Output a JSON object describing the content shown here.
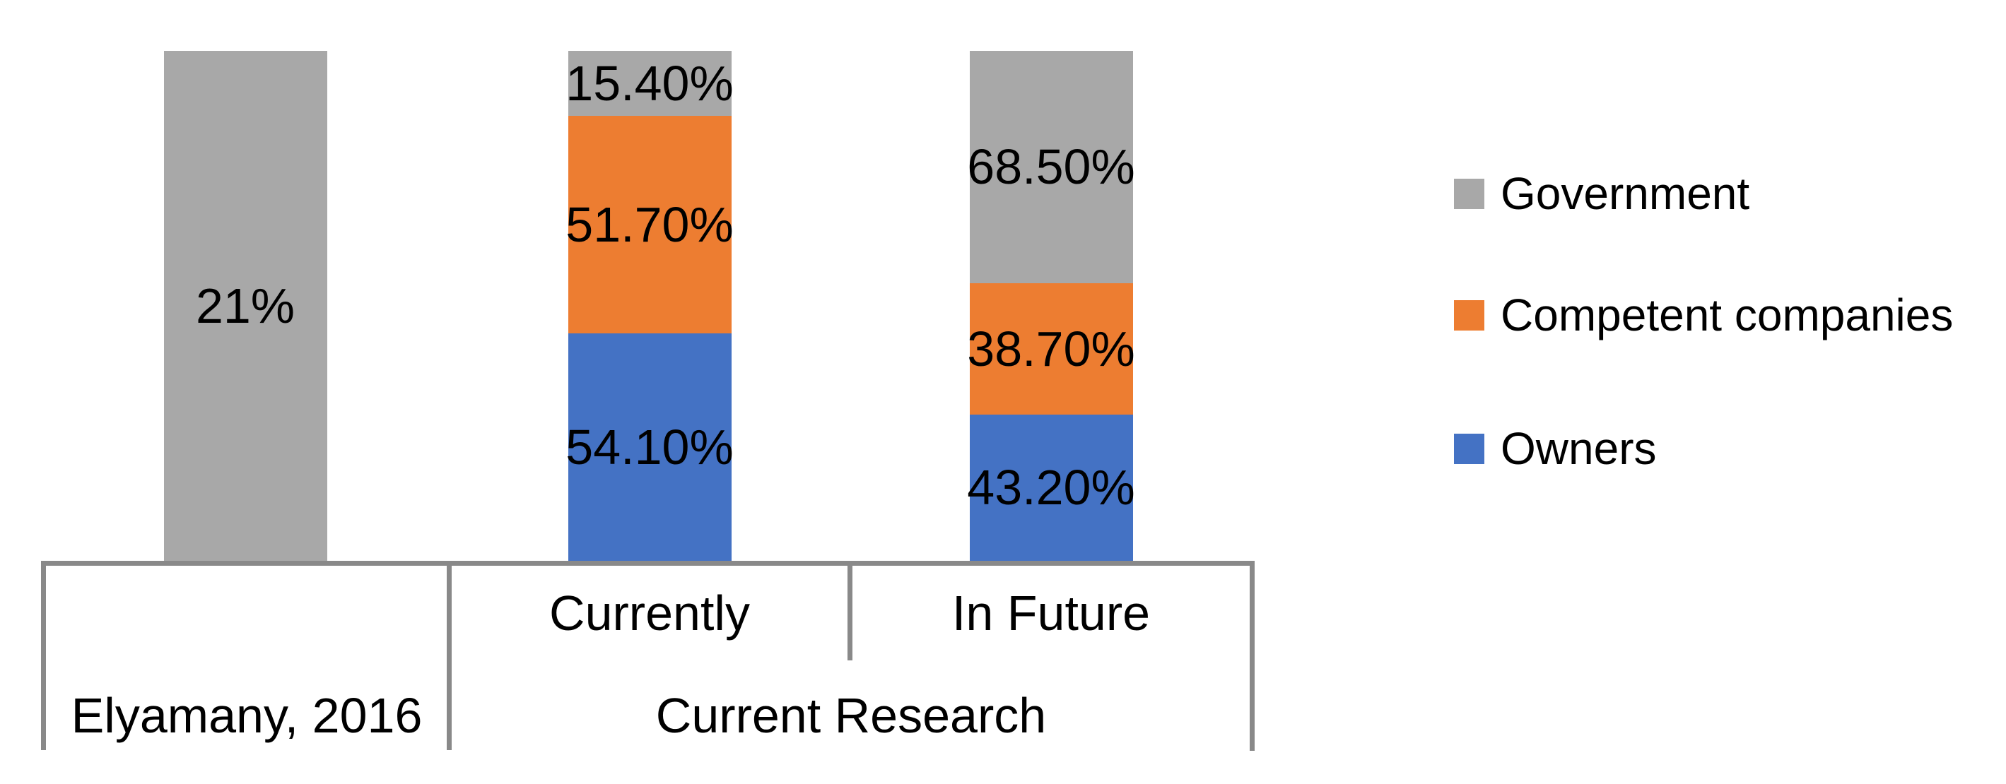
{
  "chart_data": {
    "type": "bar",
    "subtype": "100-percent-stacked-column",
    "title": "",
    "categories": [
      "Elyamany, 2016",
      "Currently",
      "In Future"
    ],
    "series": [
      {
        "name": "Owners",
        "color": "#4472C4",
        "values": [
          null,
          54.1,
          43.2
        ],
        "data_labels": [
          "",
          "54.10%",
          "43.20%"
        ]
      },
      {
        "name": "Competent companies",
        "color": "#ED7D31",
        "values": [
          null,
          51.7,
          38.7
        ],
        "data_labels": [
          "",
          "51.70%",
          "38.70%"
        ]
      },
      {
        "name": "Government",
        "color": "#A8A8A8",
        "values": [
          21,
          15.4,
          68.5
        ],
        "data_labels": [
          "21%",
          "15.40%",
          "68.50%"
        ]
      }
    ],
    "category_axis": {
      "sub_row": [
        {
          "label": "Currently"
        },
        {
          "label": "In Future"
        }
      ],
      "group_row": [
        {
          "label": "Elyamany, 2016"
        },
        {
          "label": "Current Research"
        }
      ],
      "line_color": "#898989"
    },
    "legend": {
      "position": "right",
      "items": [
        {
          "label": "Government",
          "color": "#A8A8A8"
        },
        {
          "label": "Competent companies",
          "color": "#ED7D31"
        },
        {
          "label": "Owners",
          "color": "#4472C4"
        }
      ]
    },
    "value_axis": {
      "visible": false,
      "grid": false
    },
    "text_color": "#000000",
    "background": "#FFFFFF"
  }
}
